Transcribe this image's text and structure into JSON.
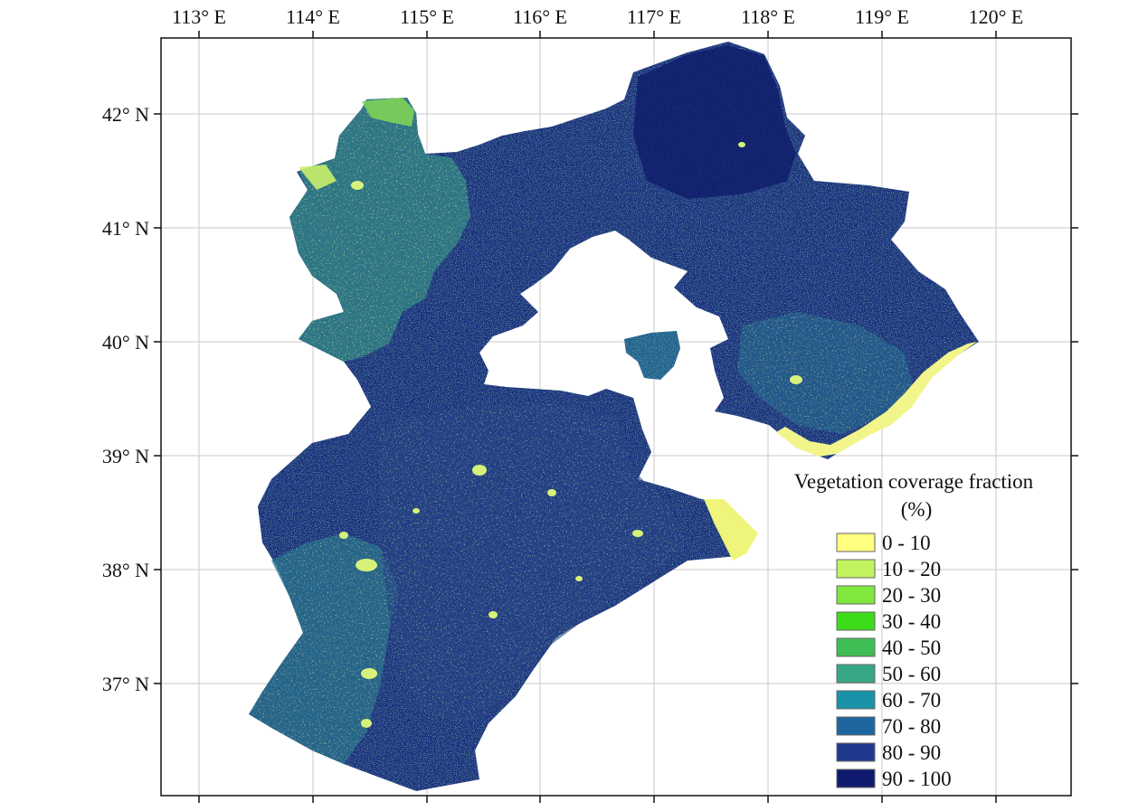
{
  "map": {
    "lon_labels": [
      "113° E",
      "114° E",
      "115° E",
      "116° E",
      "117° E",
      "118° E",
      "119° E",
      "120° E"
    ],
    "lat_labels": [
      "42° N",
      "41° N",
      "40° N",
      "39° N",
      "38° N",
      "37° N"
    ],
    "graticule": true
  },
  "legend": {
    "title_line1": "Vegetation coverage fraction",
    "title_line2": "(%)",
    "classes": [
      {
        "label": "0 - 10",
        "color": "#ffff80"
      },
      {
        "label": "10 - 20",
        "color": "#c3f35f"
      },
      {
        "label": "20 - 30",
        "color": "#80e73c"
      },
      {
        "label": "30 - 40",
        "color": "#3ddc1a"
      },
      {
        "label": "40 - 50",
        "color": "#3fbe55"
      },
      {
        "label": "50 - 60",
        "color": "#36a886"
      },
      {
        "label": "60 - 70",
        "color": "#1a92a8"
      },
      {
        "label": "70 - 80",
        "color": "#1f66a0"
      },
      {
        "label": "80 - 90",
        "color": "#1f3a8c"
      },
      {
        "label": "90 - 100",
        "color": "#0f1a6e"
      }
    ]
  },
  "region_colors": {
    "dominant": "#1b2f7e",
    "mid": "#24618f",
    "light": "#2e8e8c",
    "green": "#5cbf57",
    "yellow": "#eef57a",
    "coast": "#f2f58a"
  }
}
